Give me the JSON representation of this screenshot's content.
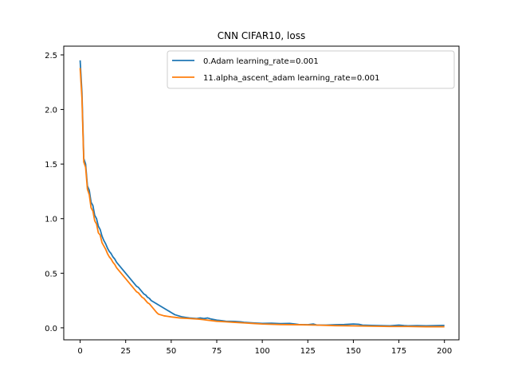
{
  "chart_data": {
    "type": "line",
    "title": "CNN CIFAR10, loss",
    "xlabel": "",
    "ylabel": "",
    "xlim": [
      -9,
      208
    ],
    "ylim": [
      -0.11,
      2.58
    ],
    "xticks": [
      0,
      25,
      50,
      75,
      100,
      125,
      150,
      175,
      200
    ],
    "yticks": [
      0.0,
      0.5,
      1.0,
      1.5,
      2.0,
      2.5
    ],
    "ytick_labels": [
      "0.0",
      "0.5",
      "1.0",
      "1.5",
      "2.0",
      "2.5"
    ],
    "grid": false,
    "legend_position": "top-right",
    "series": [
      {
        "name": "0.Adam learning_rate=0.001",
        "color": "#1f77b4",
        "points": [
          [
            0,
            2.45
          ],
          [
            1,
            2.15
          ],
          [
            2,
            1.55
          ],
          [
            3,
            1.5
          ],
          [
            4,
            1.3
          ],
          [
            5,
            1.26
          ],
          [
            6,
            1.15
          ],
          [
            7,
            1.12
          ],
          [
            8,
            1.03
          ],
          [
            9,
            1.0
          ],
          [
            10,
            0.93
          ],
          [
            11,
            0.9
          ],
          [
            12,
            0.84
          ],
          [
            13,
            0.8
          ],
          [
            14,
            0.77
          ],
          [
            15,
            0.73
          ],
          [
            16,
            0.7
          ],
          [
            17,
            0.68
          ],
          [
            18,
            0.65
          ],
          [
            19,
            0.63
          ],
          [
            20,
            0.6
          ],
          [
            21,
            0.58
          ],
          [
            22,
            0.56
          ],
          [
            23,
            0.54
          ],
          [
            24,
            0.52
          ],
          [
            25,
            0.5
          ],
          [
            26,
            0.48
          ],
          [
            27,
            0.46
          ],
          [
            28,
            0.44
          ],
          [
            29,
            0.42
          ],
          [
            30,
            0.4
          ],
          [
            31,
            0.38
          ],
          [
            32,
            0.37
          ],
          [
            33,
            0.35
          ],
          [
            34,
            0.33
          ],
          [
            35,
            0.31
          ],
          [
            36,
            0.3
          ],
          [
            37,
            0.28
          ],
          [
            38,
            0.27
          ],
          [
            39,
            0.25
          ],
          [
            40,
            0.24
          ],
          [
            41,
            0.23
          ],
          [
            42,
            0.22
          ],
          [
            43,
            0.21
          ],
          [
            44,
            0.2
          ],
          [
            45,
            0.19
          ],
          [
            46,
            0.18
          ],
          [
            47,
            0.17
          ],
          [
            48,
            0.16
          ],
          [
            49,
            0.15
          ],
          [
            50,
            0.14
          ],
          [
            52,
            0.12
          ],
          [
            54,
            0.11
          ],
          [
            56,
            0.1
          ],
          [
            58,
            0.095
          ],
          [
            60,
            0.09
          ],
          [
            62,
            0.088
          ],
          [
            64,
            0.085
          ],
          [
            66,
            0.09
          ],
          [
            68,
            0.085
          ],
          [
            70,
            0.09
          ],
          [
            72,
            0.08
          ],
          [
            75,
            0.07
          ],
          [
            78,
            0.065
          ],
          [
            80,
            0.06
          ],
          [
            85,
            0.058
          ],
          [
            88,
            0.055
          ],
          [
            90,
            0.05
          ],
          [
            95,
            0.045
          ],
          [
            100,
            0.04
          ],
          [
            105,
            0.042
          ],
          [
            110,
            0.038
          ],
          [
            115,
            0.04
          ],
          [
            118,
            0.035
          ],
          [
            120,
            0.03
          ],
          [
            125,
            0.028
          ],
          [
            128,
            0.035
          ],
          [
            130,
            0.025
          ],
          [
            135,
            0.025
          ],
          [
            140,
            0.028
          ],
          [
            145,
            0.03
          ],
          [
            150,
            0.035
          ],
          [
            153,
            0.032
          ],
          [
            155,
            0.025
          ],
          [
            160,
            0.022
          ],
          [
            165,
            0.02
          ],
          [
            170,
            0.018
          ],
          [
            175,
            0.025
          ],
          [
            178,
            0.02
          ],
          [
            180,
            0.018
          ],
          [
            185,
            0.02
          ],
          [
            190,
            0.018
          ],
          [
            195,
            0.02
          ],
          [
            200,
            0.022
          ]
        ]
      },
      {
        "name": "11.alpha_ascent_adam learning_rate=0.001",
        "color": "#ff7f0e",
        "points": [
          [
            0,
            2.38
          ],
          [
            1,
            2.1
          ],
          [
            2,
            1.52
          ],
          [
            3,
            1.47
          ],
          [
            4,
            1.27
          ],
          [
            5,
            1.22
          ],
          [
            6,
            1.1
          ],
          [
            7,
            1.07
          ],
          [
            8,
            0.98
          ],
          [
            9,
            0.95
          ],
          [
            10,
            0.87
          ],
          [
            11,
            0.85
          ],
          [
            12,
            0.78
          ],
          [
            13,
            0.75
          ],
          [
            14,
            0.72
          ],
          [
            15,
            0.68
          ],
          [
            16,
            0.65
          ],
          [
            17,
            0.63
          ],
          [
            18,
            0.6
          ],
          [
            19,
            0.58
          ],
          [
            20,
            0.55
          ],
          [
            21,
            0.53
          ],
          [
            22,
            0.51
          ],
          [
            23,
            0.49
          ],
          [
            24,
            0.47
          ],
          [
            25,
            0.45
          ],
          [
            26,
            0.43
          ],
          [
            27,
            0.41
          ],
          [
            28,
            0.39
          ],
          [
            29,
            0.37
          ],
          [
            30,
            0.35
          ],
          [
            31,
            0.33
          ],
          [
            32,
            0.32
          ],
          [
            33,
            0.3
          ],
          [
            34,
            0.28
          ],
          [
            35,
            0.27
          ],
          [
            36,
            0.25
          ],
          [
            37,
            0.23
          ],
          [
            38,
            0.22
          ],
          [
            39,
            0.2
          ],
          [
            40,
            0.18
          ],
          [
            41,
            0.16
          ],
          [
            42,
            0.14
          ],
          [
            43,
            0.125
          ],
          [
            44,
            0.12
          ],
          [
            46,
            0.11
          ],
          [
            48,
            0.105
          ],
          [
            50,
            0.1
          ],
          [
            55,
            0.09
          ],
          [
            60,
            0.085
          ],
          [
            65,
            0.08
          ],
          [
            70,
            0.07
          ],
          [
            75,
            0.06
          ],
          [
            80,
            0.055
          ],
          [
            85,
            0.05
          ],
          [
            90,
            0.045
          ],
          [
            95,
            0.04
          ],
          [
            100,
            0.035
          ],
          [
            110,
            0.03
          ],
          [
            120,
            0.028
          ],
          [
            130,
            0.025
          ],
          [
            140,
            0.02
          ],
          [
            150,
            0.018
          ],
          [
            160,
            0.015
          ],
          [
            170,
            0.012
          ],
          [
            180,
            0.012
          ],
          [
            190,
            0.01
          ],
          [
            200,
            0.01
          ]
        ]
      }
    ]
  }
}
